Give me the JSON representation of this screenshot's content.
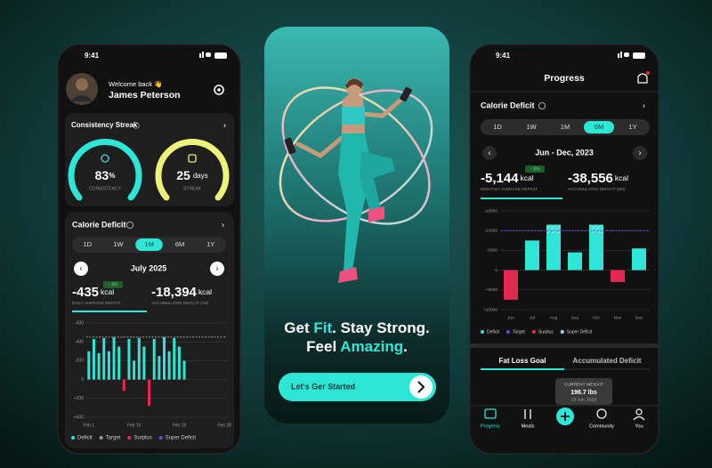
{
  "left": {
    "status_time": "9:41",
    "welcome": "Welcome back 👋",
    "name": "James Peterson",
    "streak": {
      "title": "Consistency Streak",
      "consistency": {
        "value": "83",
        "unit": "%",
        "label": "CONSISTENCY"
      },
      "streak": {
        "value": "25",
        "unit": "days",
        "label": "STREAK"
      }
    },
    "deficit": {
      "title": "Calorie Deficit",
      "tabs": [
        "1D",
        "1W",
        "1M",
        "6M",
        "1Y"
      ],
      "active_tab": 2,
      "period": "July 2025",
      "badge": "↑ 8%",
      "average": {
        "value": "-435",
        "unit": "kcal",
        "label": "DAILY AVERAGE DEFICIT"
      },
      "accumulated": {
        "value": "-18,394",
        "unit": "kcal",
        "label": "ACCUMULATED DEFICIT (1M)"
      },
      "chart": {
        "type": "bar",
        "categories": [
          "Feb 1",
          null,
          null,
          null,
          null,
          null,
          null,
          null,
          null,
          "Feb 10",
          null,
          null,
          null,
          null,
          null,
          null,
          null,
          null,
          "Feb 19",
          null,
          null,
          null,
          null,
          null,
          null,
          null,
          null,
          "Feb 28"
        ],
        "values": [
          -300,
          -430,
          -280,
          -440,
          -300,
          -450,
          -350,
          120,
          -430,
          -200,
          -440,
          -350,
          280,
          -430,
          -250,
          -450,
          -300,
          -440,
          -350,
          -200,
          null,
          null,
          null,
          null,
          null,
          null,
          null,
          null
        ],
        "ylim": [
          -600,
          400
        ],
        "y_inverted": true,
        "yticks": [
          -600,
          -400,
          -200,
          0,
          {
            "value": 200,
            "label": "+200"
          },
          {
            "value": 400,
            "label": "+400"
          }
        ],
        "target": -450,
        "legend": [
          {
            "name": "Deficit",
            "color": "#2ee6d6"
          },
          {
            "name": "Target",
            "color": "#9a9a9a"
          },
          {
            "name": "Surplus",
            "color": "#e5284f"
          },
          {
            "name": "Super Deficit",
            "color": "#6c4ee0"
          }
        ]
      }
    }
  },
  "middle": {
    "headline_1": [
      "Get ",
      "Fit",
      ". Stay Strong."
    ],
    "headline_2": [
      "Feel ",
      "Amazing",
      "."
    ],
    "button": "Let's Ger Started"
  },
  "right": {
    "status_time": "9:41",
    "title": "Progress",
    "deficit": {
      "title": "Calorie Deficit",
      "tabs": [
        "1D",
        "1W",
        "1M",
        "6M",
        "1Y"
      ],
      "active_tab": 3,
      "period": "Jun - Dec, 2023",
      "badge": "↑ 8%",
      "average": {
        "value": "-5,144",
        "unit": "kcal",
        "label": "MONTHLY AVERAGE DEFICIT"
      },
      "accumulated": {
        "value": "-38,556",
        "unit": "kcal",
        "label": "ACCUMULATED DEFICIT (6M)"
      },
      "chart": {
        "type": "bar",
        "categories": [
          "Jun",
          "Jul",
          "Aug",
          "Sep",
          "Oct",
          "Nov",
          "Dec"
        ],
        "values": [
          7500,
          -7500,
          -9000,
          -4500,
          -9000,
          3000,
          -5500
        ],
        "super": [
          null,
          null,
          -2500,
          null,
          -2500,
          null,
          null
        ],
        "ylim": [
          -15000,
          10000
        ],
        "y_inverted": true,
        "yticks": [
          -15000,
          -10000,
          -5000,
          0,
          {
            "value": 5000,
            "label": "+5000"
          },
          {
            "value": 10000,
            "label": "+10000"
          }
        ],
        "target": -10000,
        "legend": [
          {
            "name": "Deficit",
            "color": "#2ee6d6"
          },
          {
            "name": "Target",
            "color": "#6c4ee0"
          },
          {
            "name": "Surplus",
            "color": "#e5284f"
          },
          {
            "name": "Super Deficit",
            "color": "#9adfe0"
          }
        ]
      }
    },
    "goal_tabs": [
      "Fat Loss Goal",
      "Accumulated Deficit"
    ],
    "tooltip": {
      "label": "CURRENT WEIGHT",
      "value": "196.7 lbs",
      "date": "23 Jun, 2023"
    },
    "nav": [
      "Progress",
      "Meals",
      "Community",
      "You"
    ]
  }
}
